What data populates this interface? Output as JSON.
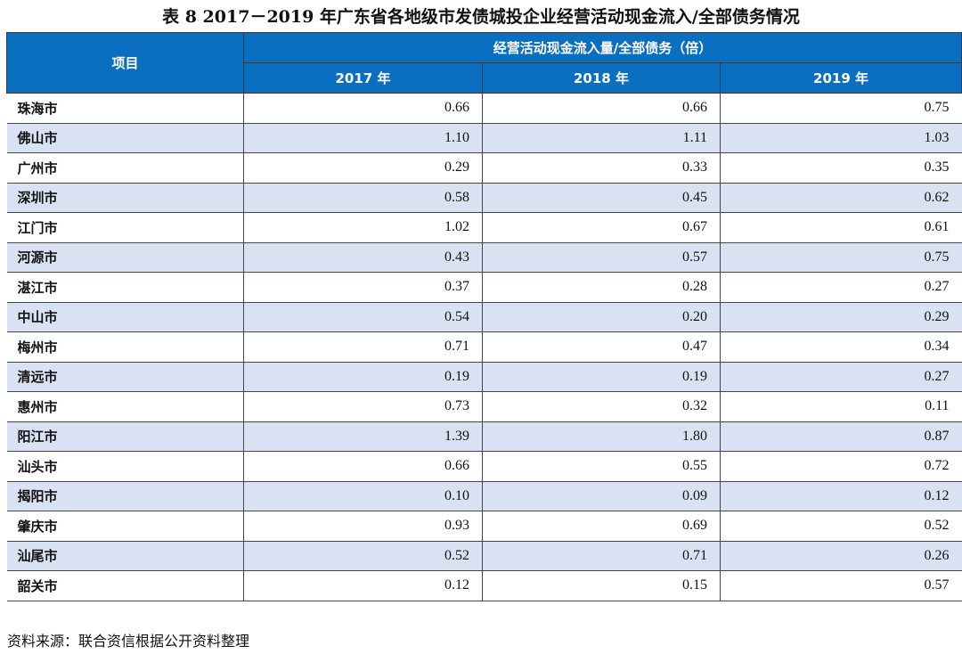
{
  "title": "表 8   2017－2019 年广东省各地级市发债城投企业经营活动现金流入/全部债务情况",
  "header": {
    "item": "项目",
    "group": "经营活动现金流入量/全部债务（倍）",
    "years": [
      "2017 年",
      "2018 年",
      "2019 年"
    ]
  },
  "colors": {
    "header_bg": "#0a6fc0",
    "stripe": "#d9e2f2"
  },
  "rows": [
    {
      "city": "珠海市",
      "v": [
        "0.66",
        "0.66",
        "0.75"
      ]
    },
    {
      "city": "佛山市",
      "v": [
        "1.10",
        "1.11",
        "1.03"
      ]
    },
    {
      "city": "广州市",
      "v": [
        "0.29",
        "0.33",
        "0.35"
      ]
    },
    {
      "city": "深圳市",
      "v": [
        "0.58",
        "0.45",
        "0.62"
      ]
    },
    {
      "city": "江门市",
      "v": [
        "1.02",
        "0.67",
        "0.61"
      ]
    },
    {
      "city": "河源市",
      "v": [
        "0.43",
        "0.57",
        "0.75"
      ]
    },
    {
      "city": "湛江市",
      "v": [
        "0.37",
        "0.28",
        "0.27"
      ]
    },
    {
      "city": "中山市",
      "v": [
        "0.54",
        "0.20",
        "0.29"
      ]
    },
    {
      "city": "梅州市",
      "v": [
        "0.71",
        "0.47",
        "0.34"
      ]
    },
    {
      "city": "清远市",
      "v": [
        "0.19",
        "0.19",
        "0.27"
      ]
    },
    {
      "city": "惠州市",
      "v": [
        "0.73",
        "0.32",
        "0.11"
      ]
    },
    {
      "city": "阳江市",
      "v": [
        "1.39",
        "1.80",
        "0.87"
      ]
    },
    {
      "city": "汕头市",
      "v": [
        "0.66",
        "0.55",
        "0.72"
      ]
    },
    {
      "city": "揭阳市",
      "v": [
        "0.10",
        "0.09",
        "0.12"
      ]
    },
    {
      "city": "肇庆市",
      "v": [
        "0.93",
        "0.69",
        "0.52"
      ]
    },
    {
      "city": "汕尾市",
      "v": [
        "0.52",
        "0.71",
        "0.26"
      ]
    },
    {
      "city": "韶关市",
      "v": [
        "0.12",
        "0.15",
        "0.57"
      ]
    }
  ],
  "footer": "资料来源：联合资信根据公开资料整理"
}
